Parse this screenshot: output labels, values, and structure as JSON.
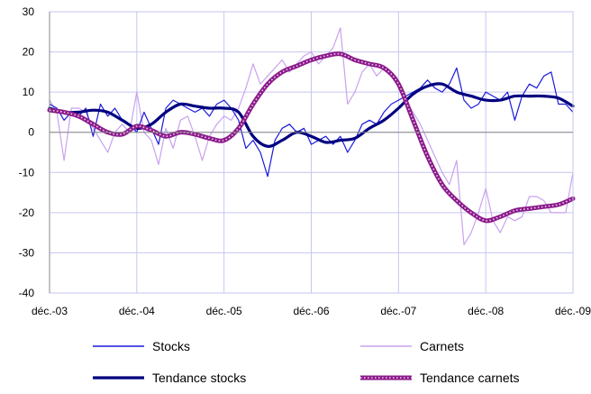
{
  "chart_data": {
    "type": "line",
    "title": "",
    "xlabel": "",
    "ylabel": "",
    "ylim": [
      -40,
      30
    ],
    "yticks": [
      -40,
      -30,
      -20,
      -10,
      0,
      10,
      20,
      30
    ],
    "xticks": [
      "déc.-03",
      "déc.-04",
      "déc.-05",
      "déc.-06",
      "déc.-07",
      "déc.-08",
      "déc.-09"
    ],
    "grid": true,
    "legend_position": "bottom",
    "colors": {
      "stocks": "#1a1adb",
      "carnets": "#c8a2ee",
      "tendance_stocks": "#000080",
      "tendance_carnets": "#8b1a8b",
      "tendance_carnets_dots": "#e9c9e9",
      "grid": "#c6c6f0",
      "axis": "#888888"
    },
    "series": [
      {
        "name": "Stocks",
        "key": "stocks",
        "style": "thin",
        "x": [
          0,
          1,
          2,
          3,
          4,
          5,
          6,
          7,
          8,
          9,
          10,
          11,
          12,
          13,
          14,
          15,
          16,
          17,
          18,
          19,
          20,
          21,
          22,
          23,
          24,
          25,
          26,
          27,
          28,
          29,
          30,
          31,
          32,
          33,
          34,
          35,
          36,
          37,
          38,
          39,
          40,
          41,
          42,
          43,
          44,
          45,
          46,
          47,
          48,
          49,
          50,
          51,
          52,
          53,
          54,
          55,
          56,
          57,
          58,
          59,
          60,
          61,
          62,
          63,
          64,
          65,
          66,
          67,
          68,
          69,
          70,
          71,
          72
        ],
        "y": [
          7,
          6,
          3,
          5,
          4,
          6,
          -1,
          7,
          4,
          6,
          3,
          2,
          0,
          5,
          1,
          -3,
          6,
          8,
          7,
          6,
          5,
          6,
          4,
          7,
          8,
          6,
          3,
          -4,
          -2,
          -5,
          -11,
          -2,
          1,
          2,
          0,
          1,
          -3,
          -2,
          -1,
          -3,
          -1,
          -5,
          -2,
          2,
          3,
          2,
          5,
          7,
          8,
          9,
          10,
          11,
          13,
          11,
          10,
          12,
          16,
          8,
          6,
          7,
          10,
          9,
          8,
          10,
          3,
          9,
          12,
          11,
          14,
          15,
          7,
          7,
          5
        ]
      },
      {
        "name": "Carnets",
        "key": "carnets",
        "style": "thin",
        "x": [
          0,
          1,
          2,
          3,
          4,
          5,
          6,
          7,
          8,
          9,
          10,
          11,
          12,
          13,
          14,
          15,
          16,
          17,
          18,
          19,
          20,
          21,
          22,
          23,
          24,
          25,
          26,
          27,
          28,
          29,
          30,
          31,
          32,
          33,
          34,
          35,
          36,
          37,
          38,
          39,
          40,
          41,
          42,
          43,
          44,
          45,
          46,
          47,
          48,
          49,
          50,
          51,
          52,
          53,
          54,
          55,
          56,
          57,
          58,
          59,
          60,
          61,
          62,
          63,
          64,
          65,
          66,
          67,
          68,
          69,
          70,
          71,
          72
        ],
        "y": [
          8,
          5,
          -7,
          6,
          6,
          5,
          1,
          -2,
          -5,
          0,
          2,
          0,
          10,
          0,
          -2,
          -8,
          1,
          -4,
          3,
          4,
          -1,
          -7,
          -1,
          2,
          4,
          3,
          6,
          11,
          17,
          12,
          14,
          16,
          18,
          15,
          17,
          19,
          20,
          17,
          19,
          21,
          26,
          7,
          10,
          15,
          17,
          14,
          16,
          15,
          12,
          8,
          5,
          2,
          -2,
          -6,
          -10,
          -13,
          -7,
          -28,
          -25,
          -20,
          -14,
          -22,
          -25,
          -21,
          -22,
          -21,
          -16,
          -16,
          -17,
          -20,
          -20,
          -20,
          -10
        ]
      },
      {
        "name": "Tendance stocks",
        "key": "tendance_stocks",
        "style": "thick",
        "x": [
          0,
          2,
          4,
          6,
          8,
          10,
          12,
          14,
          16,
          18,
          20,
          22,
          24,
          26,
          28,
          30,
          32,
          34,
          36,
          38,
          40,
          42,
          44,
          46,
          48,
          50,
          52,
          54,
          56,
          58,
          60,
          62,
          64,
          66,
          68,
          70,
          72
        ],
        "y": [
          6,
          5,
          5,
          5.5,
          5,
          3,
          1,
          2,
          5,
          7,
          6.5,
          6,
          6,
          5,
          -1,
          -3.5,
          -2,
          0,
          -1,
          -2.5,
          -2,
          -1.5,
          1,
          3,
          6,
          9.5,
          11.5,
          12,
          10,
          9,
          8,
          8,
          9,
          9,
          9,
          8.5,
          6.5
        ]
      },
      {
        "name": "Tendance carnets",
        "key": "tendance_carnets",
        "style": "dotted",
        "x": [
          0,
          2,
          4,
          6,
          8,
          10,
          12,
          14,
          16,
          18,
          20,
          22,
          24,
          26,
          28,
          30,
          32,
          34,
          36,
          38,
          40,
          42,
          44,
          46,
          48,
          50,
          52,
          54,
          56,
          58,
          60,
          62,
          64,
          66,
          68,
          70,
          72
        ],
        "y": [
          5.5,
          5,
          4,
          2,
          0,
          -0.5,
          1.5,
          0.5,
          -1,
          0,
          -0.5,
          -1.5,
          -2,
          1,
          7,
          12,
          15,
          16.5,
          18,
          19,
          19.5,
          18,
          17,
          16,
          12,
          3,
          -6,
          -13,
          -17,
          -20,
          -22,
          -21,
          -19.5,
          -19,
          -18.5,
          -18,
          -16.5
        ]
      }
    ]
  }
}
